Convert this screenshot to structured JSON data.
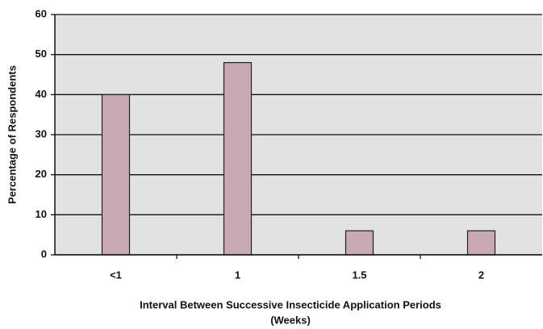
{
  "chart_data": {
    "type": "bar",
    "x_label": "Interval Between Successive Insecticide Application Periods",
    "x_label_unit": "(Weeks)",
    "y_label": "Percentage of Respondents",
    "categories": [
      "<1",
      "1",
      "1.5",
      "2"
    ],
    "values": [
      40,
      48,
      6,
      6
    ],
    "color": "#c9a9b5",
    "ylim": [
      0,
      60
    ],
    "yticks": [
      0,
      10,
      20,
      30,
      40,
      50,
      60
    ],
    "grid": true
  }
}
